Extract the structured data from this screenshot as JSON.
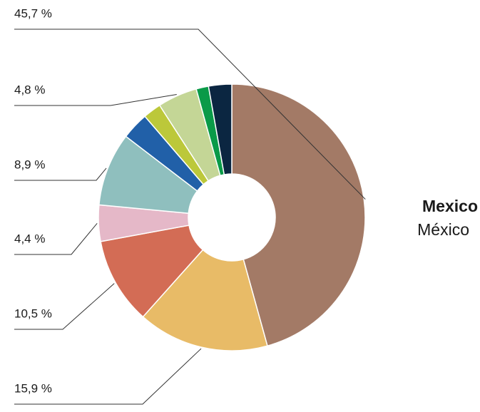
{
  "chart_data": {
    "type": "donut",
    "title": "Mexico",
    "subtitle": "México",
    "values": [
      45.7,
      15.9,
      10.5,
      4.4,
      8.9,
      3.3,
      2.2,
      4.8,
      1.5,
      2.8
    ],
    "value_labels": [
      "45,7 %",
      "15,9 %",
      "10,5 %",
      "4,4 %",
      "8,9 %",
      null,
      null,
      "4,8 %",
      null,
      null
    ],
    "colors": [
      "#a37a66",
      "#e8bb67",
      "#d36c55",
      "#e5b8c8",
      "#8fbfbe",
      "#2160a8",
      "#bcc83a",
      "#c4d696",
      "#0a9a48",
      "#0b2641"
    ]
  }
}
